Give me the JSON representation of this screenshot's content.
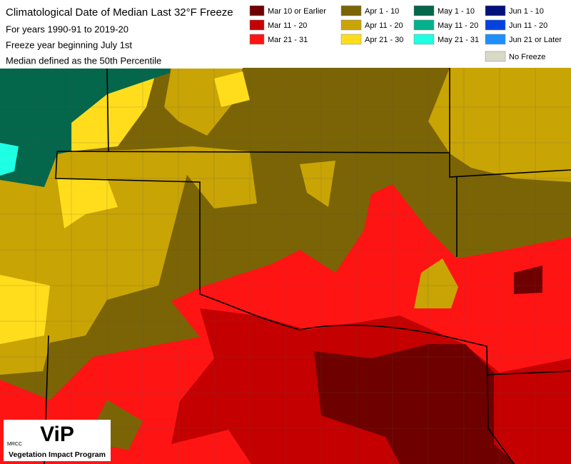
{
  "header": {
    "title": "Climatological Date of Median Last 32°F Freeze",
    "lines": [
      "For years 1990-91 to 2019-20",
      "Freeze year beginning July 1st",
      "Median defined as the 50th Percentile"
    ]
  },
  "legend": {
    "items": [
      {
        "label": "Mar 10 or Earlier",
        "color": "#6e0000"
      },
      {
        "label": "Mar 11 - 20",
        "color": "#c40000"
      },
      {
        "label": "Mar 21 - 31",
        "color": "#ff1414"
      },
      {
        "label": "Apr 1 - 10",
        "color": "#7b6405"
      },
      {
        "label": "Apr 11 - 20",
        "color": "#c9a405"
      },
      {
        "label": "Apr 21 - 30",
        "color": "#ffdd1c"
      },
      {
        "label": "May 1 - 10",
        "color": "#04664a"
      },
      {
        "label": "May 11 - 20",
        "color": "#04b08e"
      },
      {
        "label": "May 21 - 31",
        "color": "#1effe4"
      },
      {
        "label": "Jun 1 - 10",
        "color": "#03117a"
      },
      {
        "label": "Jun 11 - 20",
        "color": "#0442e0"
      },
      {
        "label": "Jun 21 or Later",
        "color": "#1e8fff"
      },
      {
        "label": "No Freeze",
        "color": "#d9d9c8"
      }
    ]
  },
  "logo": {
    "org": "MRCC",
    "mark": "ViP",
    "name": "Vegetation Impact Program"
  }
}
